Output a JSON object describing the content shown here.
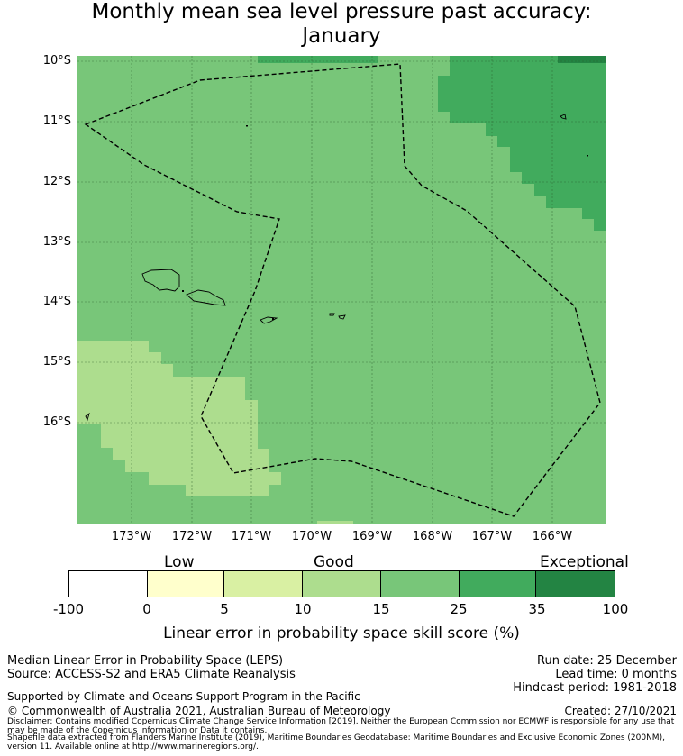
{
  "title_line1": "Monthly mean sea level pressure past accuracy:",
  "title_line2": "January",
  "lat_labels": [
    "10°S",
    "11°S",
    "12°S",
    "13°S",
    "14°S",
    "15°S",
    "16°S"
  ],
  "lon_labels": [
    "173°W",
    "172°W",
    "171°W",
    "170°W",
    "169°W",
    "168°W",
    "167°W",
    "166°W"
  ],
  "categories": {
    "low": "Low",
    "good": "Good",
    "exceptional": "Exceptional"
  },
  "colorbar": {
    "ticks": [
      "-100",
      "0",
      "5",
      "10",
      "15",
      "25",
      "35",
      "100"
    ],
    "colors": [
      "#ffffff",
      "#ffffcc",
      "#d9f0a3",
      "#addd8e",
      "#78c679",
      "#41ab5d",
      "#238443"
    ],
    "label": "Linear error in probability space skill score (%)"
  },
  "map_colors": {
    "base": "#78c679",
    "higher": "#41ab5d",
    "highest": "#238443",
    "lower": "#addd8e"
  },
  "footer": {
    "method": "Median Linear Error in Probability Space (LEPS)",
    "source": "Source: ACCESS-S2 and ERA5 Climate Reanalysis",
    "run_date": "Run date: 25 December",
    "lead_time": "Lead time: 0 months",
    "hindcast": "Hindcast period: 1981-2018",
    "support": "Supported by Climate and Oceans Support Program in the Pacific",
    "copyright": "© Commonwealth of Australia 2021, Australian Bureau of Meteorology",
    "created": "Created: 27/10/2021",
    "disclaimer": "Disclaimer: Contains modified Copernicus Climate Change Service Information [2019]. Neither the European Commission nor ECMWF is responsible for any use that may be made of the Copernicus Information or Data it contains.",
    "shapefile": "Shapefile data extracted from Flanders Marine Institute (2019), Maritime Boundaries Geodatabase: Maritime Boundaries and Exclusive Economic Zones (200NM), version 11. Available online at http://www.marineregions.org/."
  }
}
